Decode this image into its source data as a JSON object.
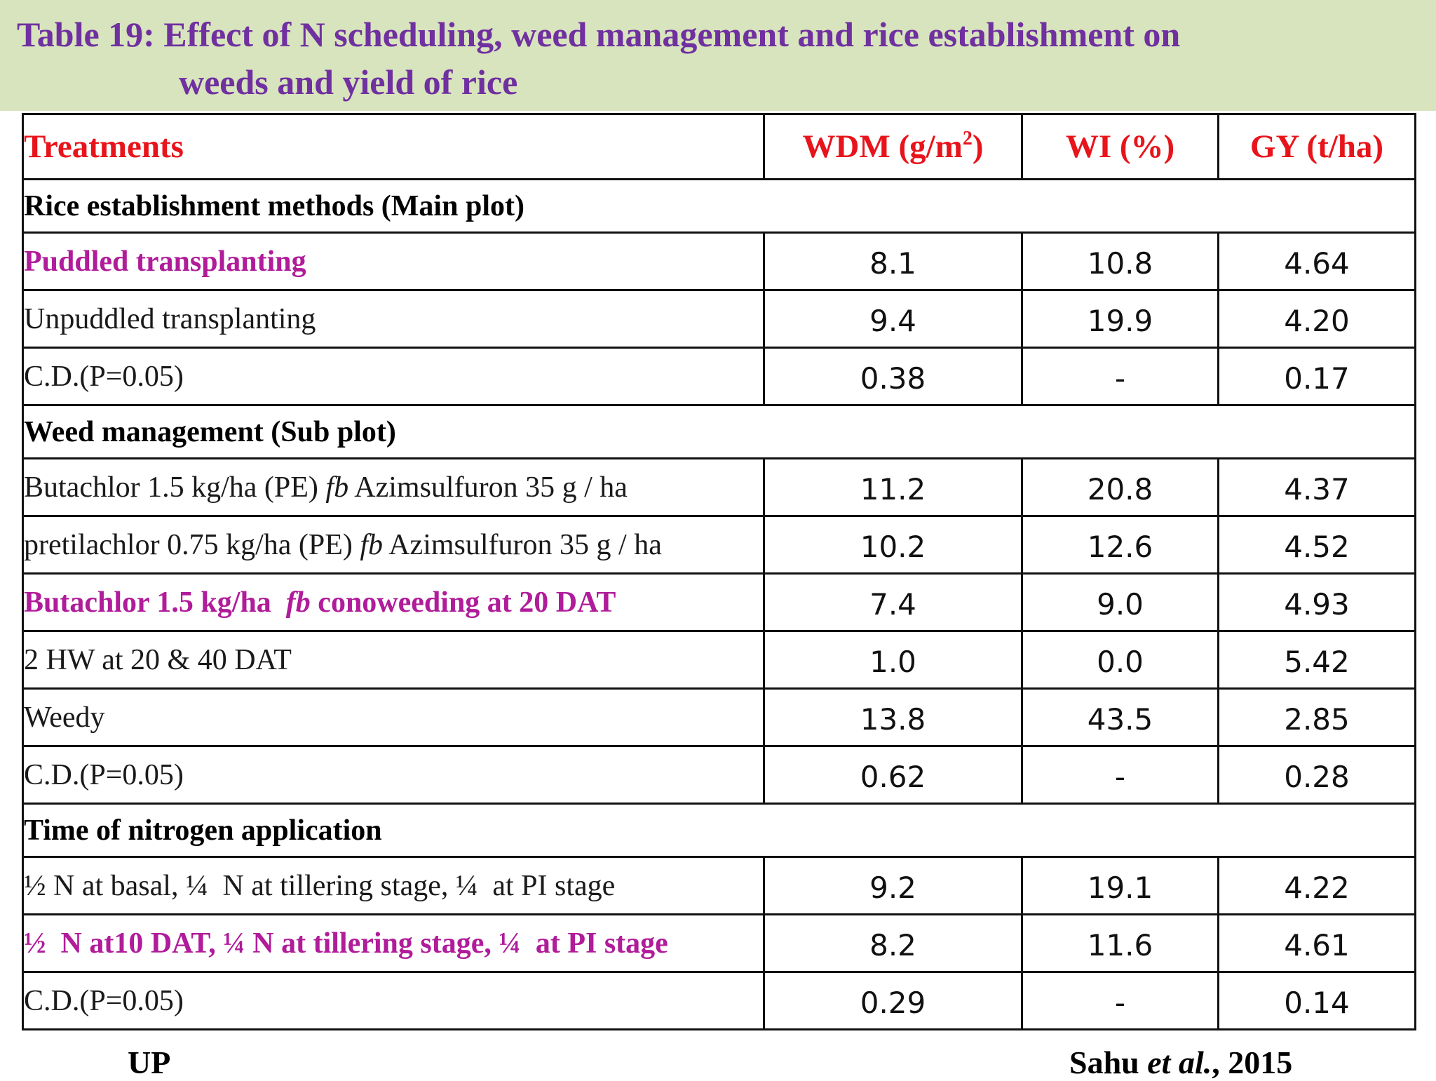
{
  "title": {
    "line1": "Table 19: Effect of N scheduling, weed management and rice establishment on",
    "line2": "weeds and yield of rice"
  },
  "headers": {
    "treatments": "Treatments",
    "wdm": "WDM (g/m",
    "wdm_sup": "2",
    "wdm_close": ")",
    "wi": "WI (%)",
    "gy": "GY (t/ha)"
  },
  "sections": [
    {
      "title": "Rice establishment methods (Main plot)",
      "rows": [
        {
          "label": "Puddled transplanting",
          "wdm": "8.1",
          "wi": "10.8",
          "gy": "4.64",
          "highlight": true
        },
        {
          "label": "Unpuddled transplanting",
          "wdm": "9.4",
          "wi": "19.9",
          "gy": "4.20",
          "highlight": false
        },
        {
          "label": "C.D.(P=0.05)",
          "wdm": "0.38",
          "wi": "-",
          "gy": "0.17",
          "highlight": false
        }
      ]
    },
    {
      "title": "Weed management (Sub plot)",
      "rows": [
        {
          "label_pre": "Butachlor 1.5 kg/ha (PE) ",
          "label_it": "fb",
          "label_post": " Azimsulfuron 35 g / ha",
          "wdm": "11.2",
          "wi": "20.8",
          "gy": "4.37",
          "highlight": false
        },
        {
          "label_pre": "pretilachlor 0.75 kg/ha (PE) ",
          "label_it": "fb",
          "label_post": " Azimsulfuron 35 g / ha",
          "wdm": "10.2",
          "wi": "12.6",
          "gy": "4.52",
          "highlight": false
        },
        {
          "label_pre": "Butachlor 1.5 kg/ha  ",
          "label_it": "fb",
          "label_post": " conoweeding at 20 DAT",
          "wdm": "7.4",
          "wi": "9.0",
          "gy": "4.93",
          "highlight": true
        },
        {
          "label": "2 HW at 20 & 40 DAT",
          "wdm": "1.0",
          "wi": "0.0",
          "gy": "5.42",
          "highlight": false
        },
        {
          "label": "Weedy",
          "wdm": "13.8",
          "wi": "43.5",
          "gy": "2.85",
          "highlight": false
        },
        {
          "label": "C.D.(P=0.05)",
          "wdm": "0.62",
          "wi": "-",
          "gy": "0.28",
          "highlight": false
        }
      ]
    },
    {
      "title": "Time of nitrogen application",
      "rows": [
        {
          "label": "½ N at basal, ¼  N at tillering stage, ¼  at PI stage",
          "wdm": "9.2",
          "wi": "19.1",
          "gy": "4.22",
          "highlight": false
        },
        {
          "label": "½  N at10 DAT, ¼ N at tillering stage, ¼  at PI stage",
          "wdm": "8.2",
          "wi": "11.6",
          "gy": "4.61",
          "highlight": true
        },
        {
          "label": "C.D.(P=0.05)",
          "wdm": "0.29",
          "wi": "-",
          "gy": "0.14",
          "highlight": false
        }
      ]
    }
  ],
  "footer": {
    "left": "UP",
    "right_pre": "Sahu ",
    "right_it": "et al.",
    "right_post": ", 2015"
  }
}
